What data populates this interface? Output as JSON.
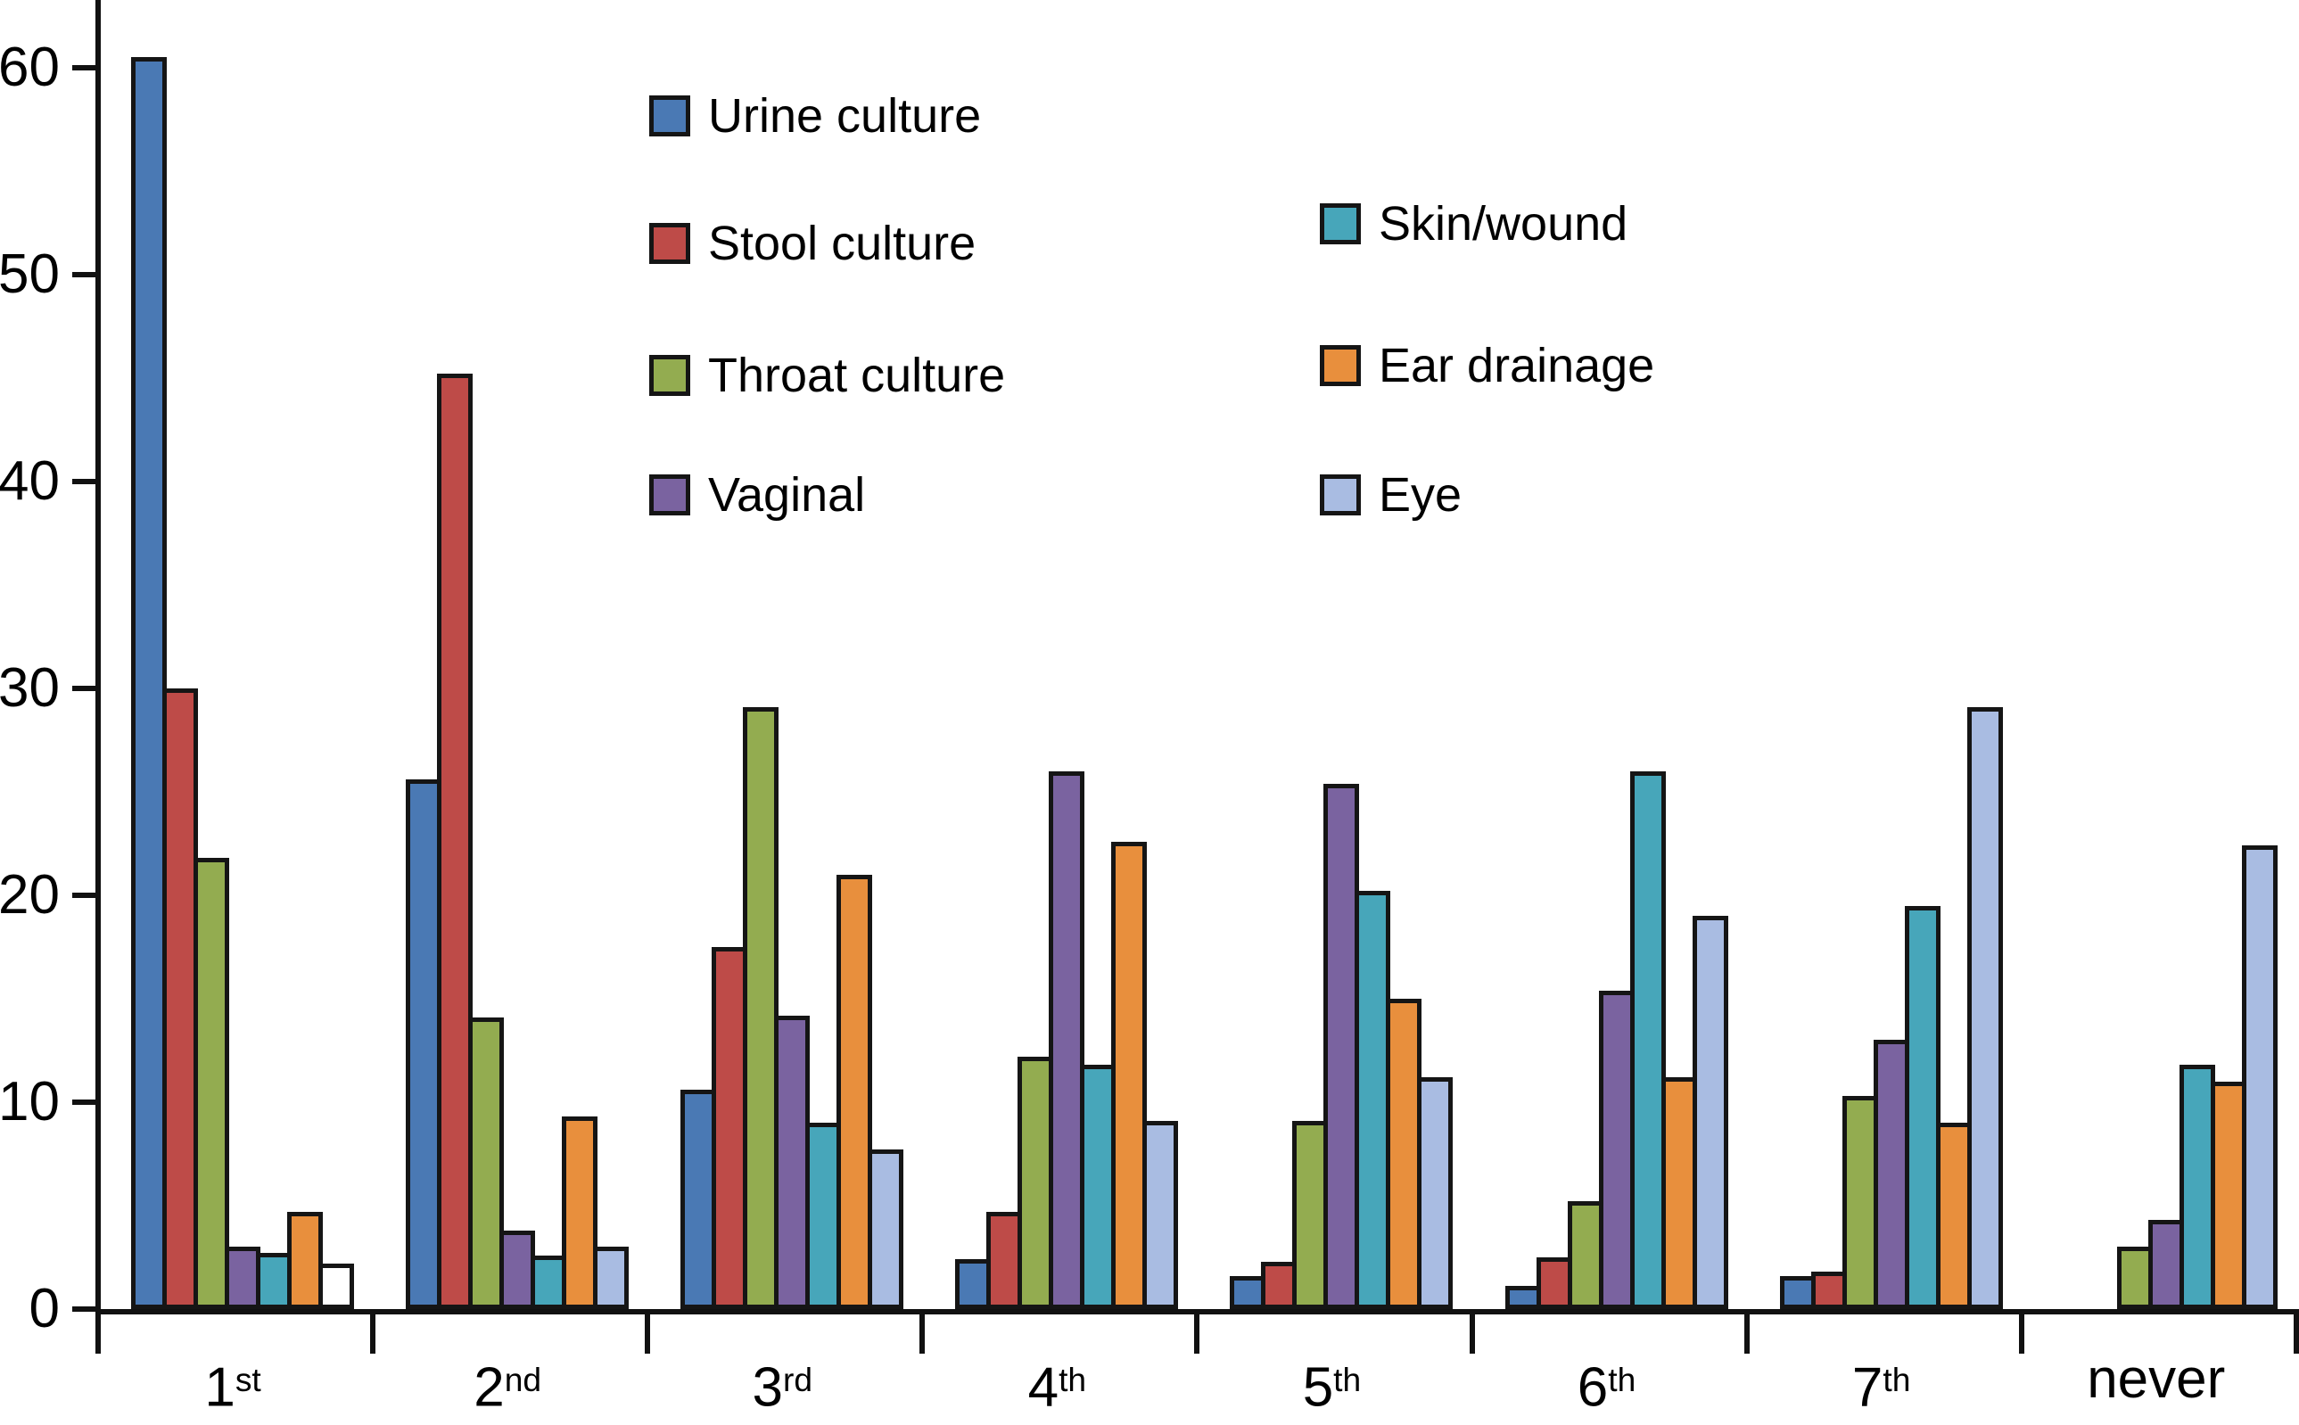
{
  "chart_data": {
    "type": "bar",
    "title": "",
    "xlabel": "",
    "ylabel": "",
    "categories": [
      {
        "base": "1",
        "suffix": "st"
      },
      {
        "base": "2",
        "suffix": "nd"
      },
      {
        "base": "3",
        "suffix": "rd"
      },
      {
        "base": "4",
        "suffix": "th"
      },
      {
        "base": "5",
        "suffix": "th"
      },
      {
        "base": "6",
        "suffix": "th"
      },
      {
        "base": "7",
        "suffix": "th"
      },
      {
        "base": "never",
        "suffix": ""
      }
    ],
    "series": [
      {
        "name": "Urine culture",
        "color": "#4A79B4",
        "values": [
          60.5,
          25.6,
          10.6,
          2.4,
          1.6,
          1.1,
          1.6,
          0
        ]
      },
      {
        "name": "Stool culture",
        "color": "#BE4B48",
        "values": [
          30.0,
          45.2,
          17.5,
          4.7,
          2.3,
          2.5,
          1.8,
          0
        ]
      },
      {
        "name": "Throat culture",
        "color": "#93AC50",
        "values": [
          21.8,
          14.1,
          29.1,
          12.2,
          9.1,
          5.2,
          10.3,
          3.0
        ]
      },
      {
        "name": "Vaginal",
        "color": "#7A63A0",
        "values": [
          3.0,
          3.8,
          14.2,
          26.0,
          25.4,
          15.4,
          13.0,
          4.3
        ]
      },
      {
        "name": "Skin/wound",
        "color": "#47A6BA",
        "values": [
          2.7,
          2.6,
          9.0,
          11.8,
          20.2,
          26.0,
          19.5,
          11.8
        ]
      },
      {
        "name": "Ear drainage",
        "color": "#E88F3D",
        "values": [
          4.7,
          9.3,
          21.0,
          22.6,
          15.0,
          11.2,
          9.0,
          11.0
        ]
      },
      {
        "name": "Eye",
        "color": "#A9BCE2",
        "values": [
          2.2,
          3.0,
          7.7,
          9.1,
          11.2,
          19.0,
          29.1,
          22.4
        ],
        "value_fill_overrides": [
          {
            "index": 0,
            "color": "#FFFFFF"
          }
        ]
      }
    ],
    "ylim": [
      0,
      63.3
    ],
    "y_ticks": [
      0,
      10,
      20,
      30,
      40,
      50,
      60
    ],
    "grid": false,
    "legend_position": "inside-top-two-columns",
    "legend_columns": [
      [
        0,
        1,
        2,
        3
      ],
      [
        4,
        5,
        6
      ]
    ],
    "bar_outline_color": "#151515",
    "special_bars": [
      {
        "series": "Eye",
        "category": "1st",
        "fill": "#FFFFFF",
        "note": "white-filled bar in first group"
      }
    ]
  }
}
